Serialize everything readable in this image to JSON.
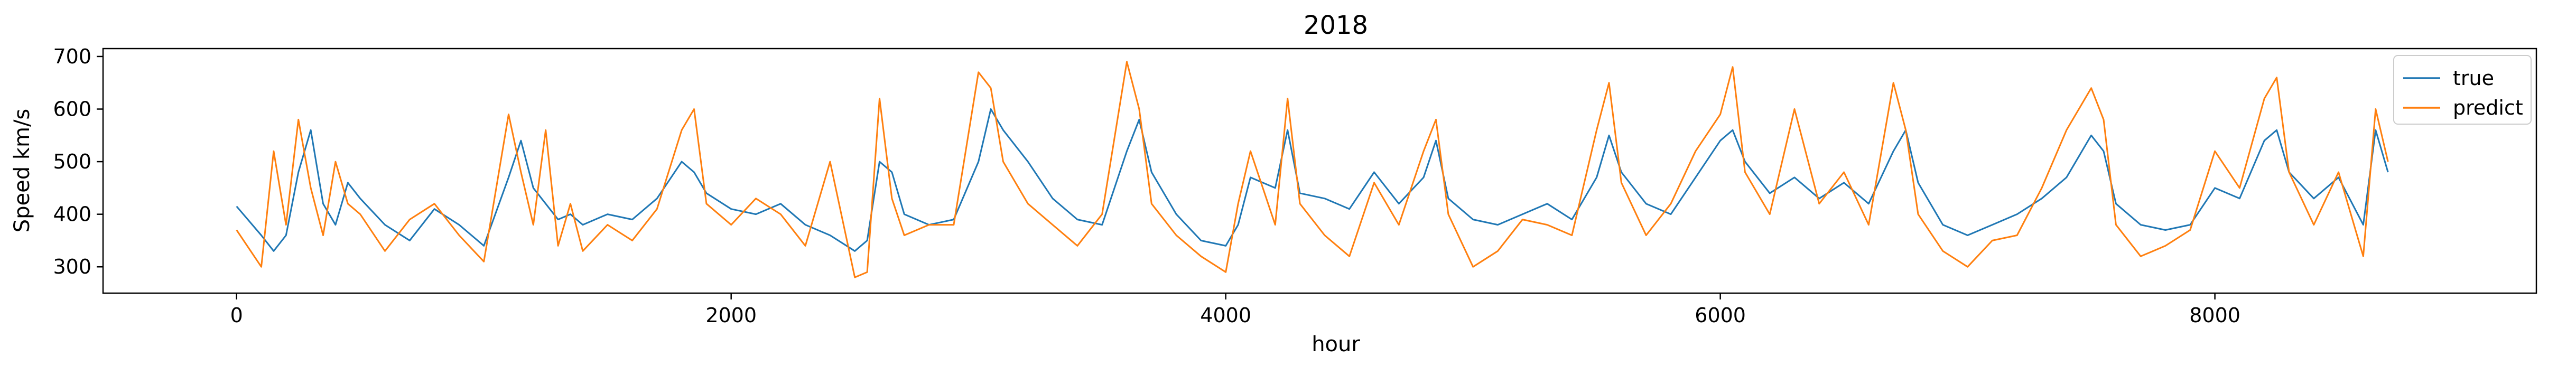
{
  "chart_data": {
    "type": "line",
    "title": "2018",
    "xlabel": "hour",
    "ylabel": "Speed km/s",
    "xlim": [
      -540,
      9300
    ],
    "ylim": [
      250,
      715
    ],
    "xticks": [
      0,
      2000,
      4000,
      6000,
      8000
    ],
    "xtick_labels": [
      "0",
      "2000",
      "4000",
      "6000",
      "8000"
    ],
    "yticks": [
      300,
      400,
      500,
      600,
      700
    ],
    "ytick_labels": [
      "300",
      "400",
      "500",
      "600",
      "700"
    ],
    "grid": false,
    "legend_position": "top-right",
    "series": [
      {
        "name": "true",
        "color": "#1f77b4",
        "x": [
          0,
          100,
          150,
          200,
          250,
          300,
          350,
          400,
          450,
          500,
          600,
          700,
          800,
          900,
          1000,
          1100,
          1150,
          1200,
          1250,
          1300,
          1350,
          1400,
          1500,
          1600,
          1700,
          1800,
          1850,
          1900,
          2000,
          2100,
          2200,
          2300,
          2400,
          2500,
          2550,
          2600,
          2650,
          2700,
          2800,
          2900,
          3000,
          3050,
          3100,
          3200,
          3300,
          3400,
          3500,
          3600,
          3650,
          3700,
          3800,
          3900,
          4000,
          4050,
          4100,
          4200,
          4250,
          4300,
          4400,
          4500,
          4600,
          4700,
          4800,
          4850,
          4900,
          5000,
          5100,
          5200,
          5300,
          5400,
          5500,
          5550,
          5600,
          5700,
          5800,
          5900,
          6000,
          6050,
          6100,
          6200,
          6300,
          6400,
          6500,
          6600,
          6700,
          6750,
          6800,
          6900,
          7000,
          7100,
          7200,
          7300,
          7400,
          7500,
          7550,
          7600,
          7700,
          7800,
          7900,
          8000,
          8100,
          8200,
          8250,
          8300,
          8400,
          8500,
          8600,
          8650,
          8700
        ],
        "values": [
          415,
          360,
          330,
          360,
          480,
          560,
          420,
          380,
          460,
          430,
          380,
          350,
          410,
          380,
          340,
          470,
          540,
          450,
          420,
          390,
          400,
          380,
          400,
          390,
          430,
          500,
          480,
          440,
          410,
          400,
          420,
          380,
          360,
          330,
          350,
          500,
          480,
          400,
          380,
          390,
          500,
          600,
          560,
          500,
          430,
          390,
          380,
          520,
          580,
          480,
          400,
          350,
          340,
          380,
          470,
          450,
          560,
          440,
          430,
          410,
          480,
          420,
          470,
          540,
          430,
          390,
          380,
          400,
          420,
          390,
          470,
          550,
          480,
          420,
          400,
          470,
          540,
          560,
          500,
          440,
          470,
          430,
          460,
          420,
          520,
          560,
          460,
          380,
          360,
          380,
          400,
          430,
          470,
          550,
          520,
          420,
          380,
          370,
          380,
          450,
          430,
          540,
          560,
          480,
          430,
          470,
          380,
          560,
          480
        ]
      },
      {
        "name": "predict",
        "color": "#ff7f0e",
        "x": [
          0,
          100,
          150,
          200,
          250,
          300,
          350,
          400,
          450,
          500,
          600,
          700,
          800,
          900,
          1000,
          1100,
          1150,
          1200,
          1250,
          1300,
          1350,
          1400,
          1500,
          1600,
          1700,
          1800,
          1850,
          1900,
          2000,
          2100,
          2200,
          2300,
          2400,
          2500,
          2550,
          2600,
          2650,
          2700,
          2800,
          2900,
          3000,
          3050,
          3100,
          3200,
          3300,
          3400,
          3500,
          3600,
          3650,
          3700,
          3800,
          3900,
          4000,
          4050,
          4100,
          4200,
          4250,
          4300,
          4400,
          4500,
          4600,
          4700,
          4800,
          4850,
          4900,
          5000,
          5100,
          5200,
          5300,
          5400,
          5500,
          5550,
          5600,
          5700,
          5800,
          5900,
          6000,
          6050,
          6100,
          6200,
          6300,
          6400,
          6500,
          6600,
          6700,
          6750,
          6800,
          6900,
          7000,
          7100,
          7200,
          7300,
          7400,
          7500,
          7550,
          7600,
          7700,
          7800,
          7900,
          8000,
          8100,
          8200,
          8250,
          8300,
          8400,
          8500,
          8600,
          8650,
          8700
        ],
        "values": [
          370,
          300,
          520,
          380,
          580,
          450,
          360,
          500,
          420,
          400,
          330,
          390,
          420,
          360,
          310,
          590,
          480,
          380,
          560,
          340,
          420,
          330,
          380,
          350,
          410,
          560,
          600,
          420,
          380,
          430,
          400,
          340,
          500,
          280,
          290,
          620,
          430,
          360,
          380,
          380,
          670,
          640,
          500,
          420,
          380,
          340,
          400,
          690,
          600,
          420,
          360,
          320,
          290,
          420,
          520,
          380,
          620,
          420,
          360,
          320,
          460,
          380,
          520,
          580,
          400,
          300,
          330,
          390,
          380,
          360,
          560,
          650,
          460,
          360,
          420,
          520,
          590,
          680,
          480,
          400,
          600,
          420,
          480,
          380,
          650,
          560,
          400,
          330,
          300,
          350,
          360,
          450,
          560,
          640,
          580,
          380,
          320,
          340,
          370,
          520,
          450,
          620,
          660,
          480,
          380,
          480,
          320,
          600,
          500
        ]
      }
    ]
  }
}
